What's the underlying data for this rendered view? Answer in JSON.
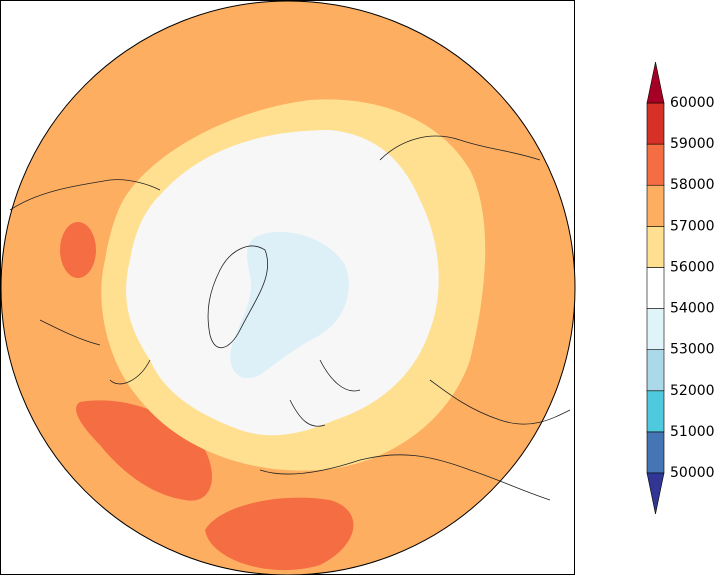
{
  "colorbar": {
    "ticks": [
      50000,
      51000,
      52000,
      53000,
      54000,
      56000,
      57000,
      58000,
      59000,
      60000
    ],
    "colors": [
      "#4575b4",
      "#4fc9de",
      "#abd9e9",
      "#e0f3f8",
      "#ffffff",
      "#fee090",
      "#fdae61",
      "#f46d43",
      "#d73027"
    ],
    "under_color": "#313695",
    "over_color": "#a50026"
  }
}
